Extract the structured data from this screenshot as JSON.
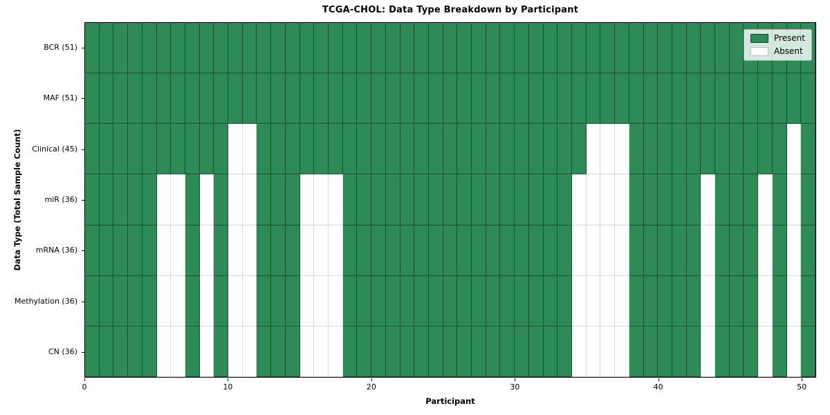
{
  "chart_data": {
    "type": "heatmap",
    "title": "TCGA-CHOL: Data Type Breakdown by Participant",
    "xlabel": "Participant",
    "ylabel": "Data Type (Total Sample Count)",
    "x_ticks": [
      0,
      10,
      20,
      30,
      40,
      50
    ],
    "x_range": [
      0,
      51
    ],
    "n_participants": 51,
    "grid": true,
    "legend_position": "upper right",
    "colors": {
      "present": "#2e8b57",
      "absent": "#ffffff"
    },
    "legend": [
      {
        "label": "Present",
        "value": "present"
      },
      {
        "label": "Absent",
        "value": "absent"
      }
    ],
    "rows": [
      {
        "key": "bcr",
        "label": "BCR (51)",
        "total": 51,
        "absent_participants": []
      },
      {
        "key": "maf",
        "label": "MAF (51)",
        "total": 51,
        "absent_participants": []
      },
      {
        "key": "clinical",
        "label": "Clinical (45)",
        "total": 45,
        "absent_participants": [
          10,
          11,
          35,
          36,
          37,
          49
        ]
      },
      {
        "key": "mir",
        "label": "miR (36)",
        "total": 36,
        "absent_participants": [
          5,
          6,
          8,
          10,
          11,
          15,
          16,
          17,
          34,
          35,
          36,
          37,
          43,
          47,
          49
        ]
      },
      {
        "key": "mrna",
        "label": "mRNA (36)",
        "total": 36,
        "absent_participants": [
          5,
          6,
          8,
          10,
          11,
          15,
          16,
          17,
          34,
          35,
          36,
          37,
          43,
          47,
          49
        ]
      },
      {
        "key": "methylation",
        "label": "Methylation (36)",
        "total": 36,
        "absent_participants": [
          5,
          6,
          8,
          10,
          11,
          15,
          16,
          17,
          34,
          35,
          36,
          37,
          43,
          47,
          49
        ]
      },
      {
        "key": "cn",
        "label": "CN (36)",
        "total": 36,
        "absent_participants": [
          5,
          6,
          8,
          10,
          11,
          15,
          16,
          17,
          34,
          35,
          36,
          37,
          43,
          47,
          49
        ]
      }
    ]
  }
}
